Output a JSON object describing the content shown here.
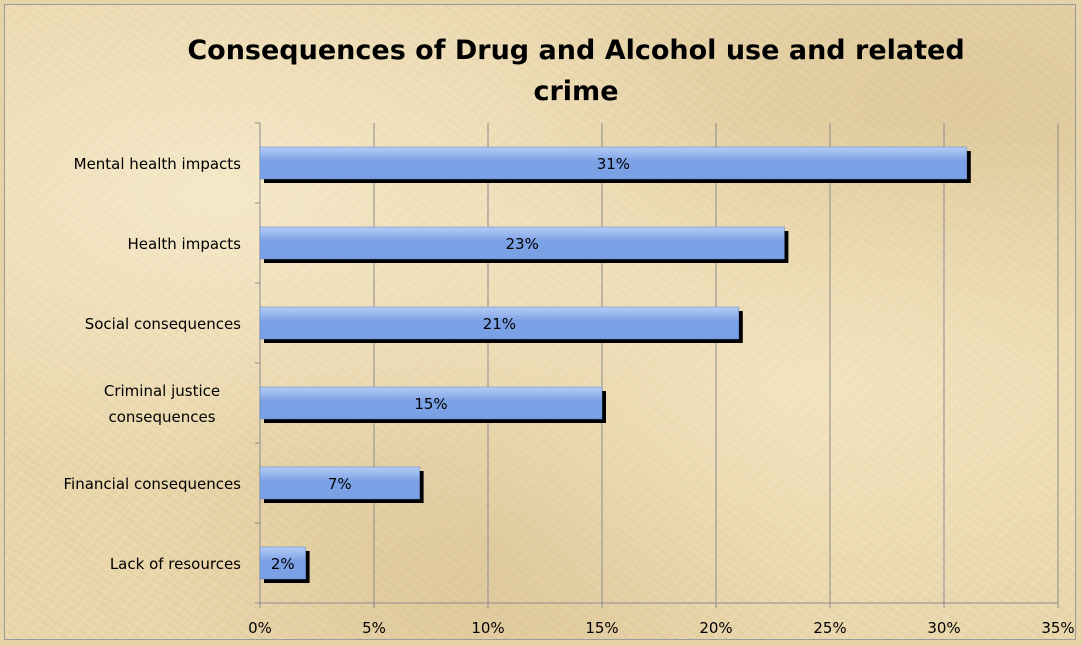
{
  "chart_data": {
    "type": "bar",
    "orientation": "horizontal",
    "title": "Consequences of Drug and Alcohol use and related crime",
    "title_lines": [
      "Consequences of Drug and Alcohol use and related",
      "crime"
    ],
    "categories": [
      "Mental health impacts",
      "Health impacts",
      "Social consequences",
      "Criminal justice consequences",
      "Financial consequences",
      "Lack of resources"
    ],
    "category_lines": [
      [
        "Mental health impacts"
      ],
      [
        "Health impacts"
      ],
      [
        "Social consequences"
      ],
      [
        "Criminal justice",
        "consequences"
      ],
      [
        "Financial consequences"
      ],
      [
        "Lack of resources"
      ]
    ],
    "values": [
      31,
      23,
      21,
      15,
      7,
      2
    ],
    "data_labels": [
      "31%",
      "23%",
      "21%",
      "15%",
      "7%",
      "2%"
    ],
    "xlim": [
      0,
      35
    ],
    "x_ticks": [
      0,
      5,
      10,
      15,
      20,
      25,
      30,
      35
    ],
    "x_tick_labels": [
      "0%",
      "5%",
      "10%",
      "15%",
      "20%",
      "25%",
      "30%",
      "35%"
    ],
    "xlabel": "",
    "ylabel": "",
    "grid": "vertical",
    "legend": "none",
    "colors": {
      "bar": "#7aa0e6",
      "bar_light": "#b4cdf5",
      "bar_shadow": "#000000",
      "gridline": "#8c8c8c",
      "axis": "#8c8c8c"
    }
  }
}
